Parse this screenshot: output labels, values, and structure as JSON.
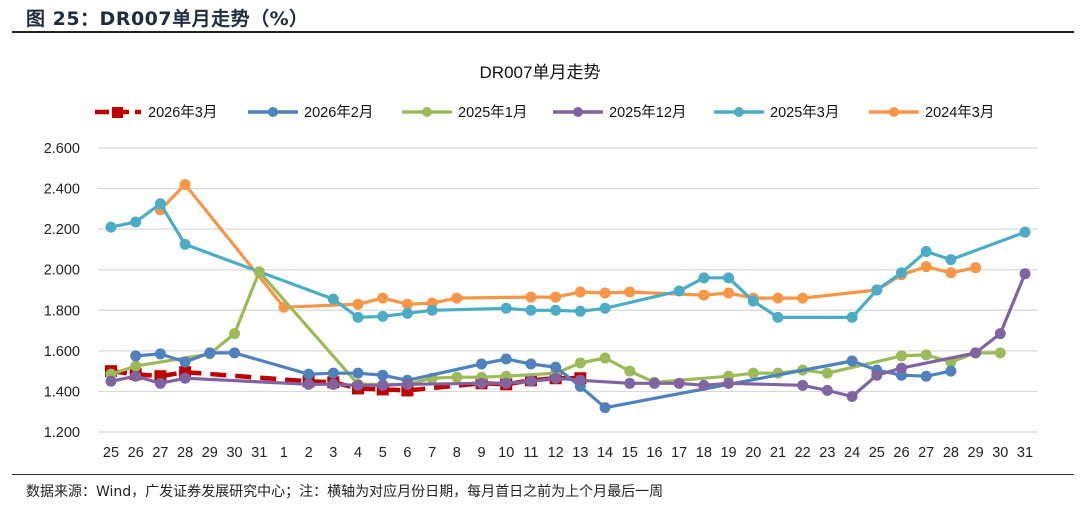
{
  "figure": {
    "title": "图 25：DR007单月走势（%）",
    "source": "数据来源：Wind，广发证券发展研究中心；注：横轴为对应月份日期，每月首日之前为上个月最后一周"
  },
  "chart_data": {
    "type": "line",
    "title": "DR007单月走势",
    "xlabel": "",
    "ylabel": "",
    "ylim": [
      1.2,
      2.6
    ],
    "yticks": [
      "2.600",
      "2.400",
      "2.200",
      "2.000",
      "1.800",
      "1.600",
      "1.400",
      "1.200"
    ],
    "ytick_values": [
      2.6,
      2.4,
      2.2,
      2.0,
      1.8,
      1.6,
      1.4,
      1.2
    ],
    "grid": true,
    "legend_position": "top",
    "categories": [
      "25",
      "26",
      "27",
      "28",
      "29",
      "30",
      "31",
      "1",
      "2",
      "3",
      "4",
      "5",
      "6",
      "7",
      "8",
      "9",
      "10",
      "11",
      "12",
      "13",
      "14",
      "15",
      "16",
      "17",
      "18",
      "19",
      "20",
      "21",
      "22",
      "23",
      "24",
      "25",
      "26",
      "27",
      "28",
      "29",
      "30",
      "31"
    ],
    "series": [
      {
        "name": "2026年3月",
        "color": "#C00000",
        "style": "dashed",
        "marker": "square",
        "values": [
          1.5,
          1.485,
          1.475,
          1.495,
          null,
          null,
          null,
          null,
          1.45,
          1.445,
          1.415,
          1.41,
          1.405,
          null,
          null,
          1.44,
          1.435,
          1.455,
          1.465,
          1.465,
          null,
          null,
          null,
          null,
          null,
          null,
          null,
          null,
          null,
          null,
          null,
          null,
          null,
          null,
          null,
          null,
          null,
          null
        ]
      },
      {
        "name": "2026年2月",
        "color": "#4F81BD",
        "style": "solid",
        "marker": "circle",
        "values": [
          null,
          1.575,
          1.585,
          1.545,
          1.59,
          1.59,
          null,
          null,
          1.485,
          1.49,
          1.49,
          1.48,
          1.455,
          null,
          null,
          1.535,
          1.56,
          1.535,
          1.52,
          1.425,
          1.32,
          null,
          null,
          null,
          null,
          null,
          null,
          null,
          null,
          null,
          1.55,
          1.505,
          1.48,
          1.475,
          1.5,
          null,
          null,
          null
        ]
      },
      {
        "name": "2025年1月",
        "color": "#9BBB59",
        "style": "solid",
        "marker": "circle",
        "values": [
          1.485,
          1.525,
          null,
          null,
          1.585,
          1.685,
          1.99,
          null,
          null,
          null,
          1.435,
          1.435,
          1.435,
          1.465,
          1.47,
          1.47,
          1.475,
          null,
          1.49,
          1.54,
          1.565,
          1.5,
          1.445,
          null,
          null,
          1.475,
          1.49,
          1.49,
          1.505,
          1.49,
          null,
          null,
          1.575,
          1.58,
          1.545,
          1.59,
          1.59,
          null
        ]
      },
      {
        "name": "2025年12月",
        "color": "#8064A2",
        "style": "solid",
        "marker": "circle",
        "values": [
          1.45,
          1.475,
          1.44,
          1.465,
          null,
          null,
          null,
          null,
          1.435,
          1.435,
          1.43,
          1.43,
          1.435,
          null,
          null,
          1.44,
          1.44,
          1.45,
          1.465,
          1.455,
          null,
          1.44,
          1.44,
          1.44,
          1.43,
          1.44,
          null,
          null,
          1.43,
          1.405,
          1.375,
          1.48,
          1.515,
          null,
          null,
          1.59,
          1.685,
          1.98
        ]
      },
      {
        "name": "2025年3月",
        "color": "#4BACC6",
        "style": "solid",
        "marker": "circle",
        "values": [
          2.21,
          2.235,
          2.325,
          2.125,
          null,
          null,
          null,
          null,
          null,
          1.855,
          1.765,
          1.77,
          1.785,
          1.8,
          null,
          null,
          1.81,
          1.8,
          1.8,
          1.795,
          1.81,
          null,
          null,
          1.895,
          1.96,
          1.96,
          1.845,
          1.765,
          null,
          null,
          1.765,
          1.9,
          1.985,
          2.09,
          2.05,
          null,
          null,
          2.185
        ]
      },
      {
        "name": "2024年3月",
        "color": "#F79646",
        "style": "solid",
        "marker": "circle",
        "values": [
          null,
          null,
          2.295,
          2.42,
          null,
          null,
          null,
          1.815,
          null,
          null,
          1.83,
          1.86,
          1.83,
          1.835,
          1.86,
          null,
          null,
          1.865,
          1.865,
          1.89,
          1.885,
          1.89,
          null,
          null,
          1.875,
          1.885,
          1.86,
          1.86,
          1.86,
          null,
          null,
          1.9,
          1.975,
          2.015,
          1.985,
          2.01,
          null,
          null
        ]
      }
    ]
  }
}
